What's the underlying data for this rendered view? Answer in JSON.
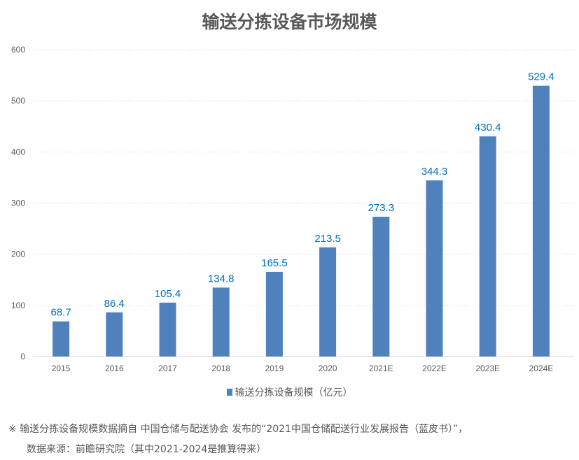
{
  "chart_data": {
    "type": "bar",
    "title": "输送分拣设备市场规模",
    "categories": [
      "2015",
      "2016",
      "2017",
      "2018",
      "2019",
      "2020",
      "2021E",
      "2022E",
      "2023E",
      "2024E"
    ],
    "series": [
      {
        "name": "输送分拣设备规模（亿元）",
        "values": [
          68.7,
          86.4,
          105.4,
          134.8,
          165.5,
          213.5,
          273.3,
          344.3,
          430.4,
          529.4
        ]
      }
    ],
    "ylim": [
      0,
      600
    ],
    "yticks": [
      0,
      100,
      200,
      300,
      400,
      500,
      600
    ],
    "grid": true,
    "legend": "bottom",
    "colors": {
      "bar": "#4f81bd",
      "label": "#0070c0"
    }
  },
  "notes": [
    "※  输送分拣设备规模数据摘自 中国仓储与配送协会 发布的“2021中国仓储配送行业发展报告（蓝皮书）”，",
    "数据来源：前瞻研究院（其中2021-2024是推算得来）"
  ]
}
